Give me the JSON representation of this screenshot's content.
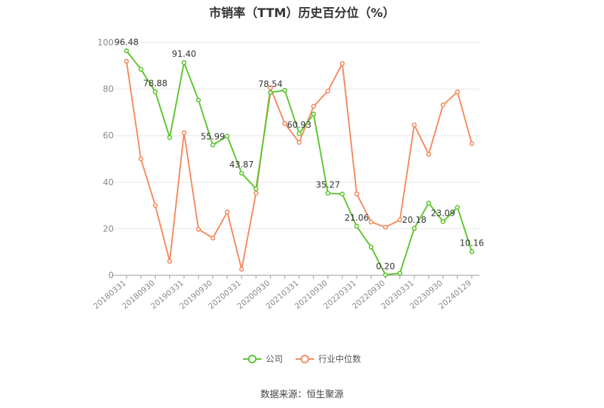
{
  "chart_data": {
    "type": "line",
    "title": "市销率（TTM）历史百分位（%）",
    "source": "数据来源：恒生聚源",
    "ylim": [
      0,
      100
    ],
    "yticks": [
      0,
      20,
      40,
      60,
      80,
      100
    ],
    "grid": true,
    "legend_position": "bottom",
    "x": [
      "20180331",
      "20180630",
      "20180930",
      "20181231",
      "20190331",
      "20190630",
      "20190930",
      "20191231",
      "20200331",
      "20200630",
      "20200930",
      "20201231",
      "20210331",
      "20210630",
      "20210930",
      "20211231",
      "20220331",
      "20220630",
      "20220930",
      "20221231",
      "20230331",
      "20230630",
      "20230930",
      "20231231",
      "20240129"
    ],
    "x_tick_labels": [
      "20180331",
      "20180930",
      "20190331",
      "20190930",
      "20200331",
      "20200930",
      "20210331",
      "20210930",
      "20220331",
      "20220930",
      "20230331",
      "20230930",
      "20240129"
    ],
    "series": [
      {
        "name": "公司",
        "color": "#5cc42e",
        "values": [
          96.48,
          88.5,
          78.88,
          59.2,
          91.4,
          75.3,
          55.99,
          59.8,
          43.87,
          37.2,
          78.54,
          79.5,
          60.93,
          69.3,
          35.27,
          34.9,
          21.06,
          12.1,
          0.2,
          0.9,
          20.18,
          31.0,
          23.09,
          29.2,
          10.16
        ],
        "data_labels": {
          "0": "96.48",
          "2": "78.88",
          "4": "91.40",
          "6": "55.99",
          "8": "43.87",
          "10": "78.54",
          "12": "60.93",
          "14": "35.27",
          "16": "21.06",
          "18": "0.20",
          "20": "20.18",
          "22": "23.09",
          "24": "10.16"
        }
      },
      {
        "name": "行业中位数",
        "color": "#f5895e",
        "values": [
          92.0,
          50.0,
          30.0,
          6.0,
          61.3,
          19.8,
          16.0,
          27.2,
          2.6,
          35.3,
          80.6,
          65.2,
          57.1,
          72.6,
          79.2,
          91.0,
          35.0,
          22.9,
          20.7,
          23.8,
          64.6,
          52.0,
          73.2,
          78.8,
          56.6
        ]
      }
    ]
  }
}
